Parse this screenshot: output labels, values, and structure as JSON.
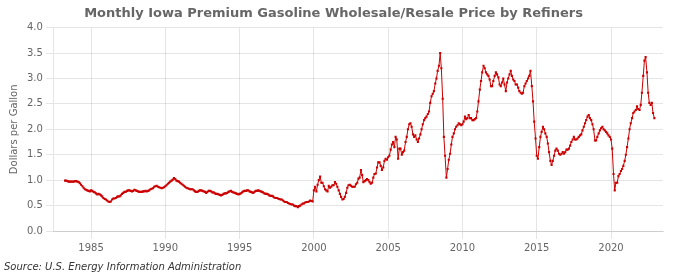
{
  "chart_data": {
    "type": "line",
    "title": "Monthly Iowa Premium Gasoline Wholesale/Resale Price by Refiners",
    "ylabel": "Dollars per Gallon",
    "annotation": "Source: U.S. Energy Information Administration",
    "color": "#cc0000",
    "marker": "square",
    "line_style": "solid",
    "grid": true,
    "xlim": [
      1982.5,
      2023.5
    ],
    "xticks": [
      1985,
      1990,
      1995,
      2000,
      2005,
      2010,
      2015,
      2020
    ],
    "ylim": [
      0.0,
      4.0
    ],
    "yticks": [
      {
        "value": 0.0,
        "label": "0.0"
      },
      0.5,
      {
        "value": 1.0,
        "label": "1.0"
      },
      1.5,
      {
        "value": 2.0,
        "label": "2.0"
      },
      2.5,
      {
        "value": 3.0,
        "label": "3.0"
      },
      3.5,
      {
        "value": 4.0,
        "label": "4.0"
      }
    ],
    "x": [
      1983.25,
      1983.33,
      1983.42,
      1983.5,
      1983.58,
      1983.67,
      1983.75,
      1983.83,
      1983.92,
      1984.0,
      1984.08,
      1984.17,
      1984.25,
      1984.33,
      1984.42,
      1984.5,
      1984.58,
      1984.67,
      1984.75,
      1984.83,
      1984.92,
      1985.0,
      1985.08,
      1985.17,
      1985.25,
      1985.33,
      1985.42,
      1985.5,
      1985.58,
      1985.67,
      1985.75,
      1985.83,
      1985.92,
      1986.0,
      1986.08,
      1986.17,
      1986.25,
      1986.33,
      1986.42,
      1986.5,
      1986.58,
      1986.67,
      1986.75,
      1986.83,
      1986.92,
      1987.0,
      1987.08,
      1987.17,
      1987.25,
      1987.33,
      1987.42,
      1987.5,
      1987.58,
      1987.67,
      1987.75,
      1987.83,
      1987.92,
      1988.0,
      1988.08,
      1988.17,
      1988.25,
      1988.33,
      1988.42,
      1988.5,
      1988.58,
      1988.67,
      1988.75,
      1988.83,
      1988.92,
      1989.0,
      1989.08,
      1989.17,
      1989.25,
      1989.33,
      1989.42,
      1989.5,
      1989.58,
      1989.67,
      1989.75,
      1989.83,
      1989.92,
      1990.0,
      1990.08,
      1990.17,
      1990.25,
      1990.33,
      1990.42,
      1990.5,
      1990.58,
      1990.67,
      1990.75,
      1990.83,
      1990.92,
      1991.0,
      1991.08,
      1991.17,
      1991.25,
      1991.33,
      1991.42,
      1991.5,
      1991.58,
      1991.67,
      1991.75,
      1991.83,
      1991.92,
      1992.0,
      1992.08,
      1992.17,
      1992.25,
      1992.33,
      1992.42,
      1992.5,
      1992.58,
      1992.67,
      1992.75,
      1992.83,
      1992.92,
      1993.0,
      1993.08,
      1993.17,
      1993.25,
      1993.33,
      1993.42,
      1993.5,
      1993.58,
      1993.67,
      1993.75,
      1993.83,
      1993.92,
      1994.0,
      1994.08,
      1994.17,
      1994.25,
      1994.33,
      1994.42,
      1994.5,
      1994.58,
      1994.67,
      1994.75,
      1994.83,
      1994.92,
      1995.0,
      1995.08,
      1995.17,
      1995.25,
      1995.33,
      1995.42,
      1995.5,
      1995.58,
      1995.67,
      1995.75,
      1995.83,
      1995.92,
      1996.0,
      1996.08,
      1996.17,
      1996.25,
      1996.33,
      1996.42,
      1996.5,
      1996.58,
      1996.67,
      1996.75,
      1996.83,
      1996.92,
      1997.0,
      1997.08,
      1997.17,
      1997.25,
      1997.33,
      1997.42,
      1997.5,
      1997.58,
      1997.67,
      1997.75,
      1997.83,
      1997.92,
      1998.0,
      1998.08,
      1998.17,
      1998.25,
      1998.33,
      1998.42,
      1998.5,
      1998.58,
      1998.67,
      1998.75,
      1998.83,
      1998.92,
      1999.0,
      1999.08,
      1999.17,
      1999.25,
      1999.33,
      1999.42,
      1999.5,
      1999.58,
      1999.67,
      1999.75,
      1999.83,
      1999.92,
      2000.0,
      2000.08,
      2000.17,
      2000.25,
      2000.33,
      2000.42,
      2000.5,
      2000.58,
      2000.67,
      2000.75,
      2000.83,
      2000.92,
      2001.0,
      2001.08,
      2001.17,
      2001.25,
      2001.33,
      2001.42,
      2001.5,
      2001.58,
      2001.67,
      2001.75,
      2001.83,
      2001.92,
      2002.0,
      2002.08,
      2002.17,
      2002.25,
      2002.33,
      2002.42,
      2002.5,
      2002.58,
      2002.67,
      2002.75,
      2002.83,
      2002.92,
      2003.0,
      2003.08,
      2003.17,
      2003.25,
      2003.33,
      2003.42,
      2003.5,
      2003.58,
      2003.67,
      2003.75,
      2003.83,
      2003.92,
      2004.0,
      2004.08,
      2004.17,
      2004.25,
      2004.33,
      2004.42,
      2004.5,
      2004.58,
      2004.67,
      2004.75,
      2004.83,
      2004.92,
      2005.0,
      2005.08,
      2005.17,
      2005.25,
      2005.33,
      2005.42,
      2005.5,
      2005.58,
      2005.67,
      2005.75,
      2005.83,
      2005.92,
      2006.0,
      2006.08,
      2006.17,
      2006.25,
      2006.33,
      2006.42,
      2006.5,
      2006.58,
      2006.67,
      2006.75,
      2006.83,
      2006.92,
      2007.0,
      2007.08,
      2007.17,
      2007.25,
      2007.33,
      2007.42,
      2007.5,
      2007.58,
      2007.67,
      2007.75,
      2007.83,
      2007.92,
      2008.0,
      2008.08,
      2008.17,
      2008.25,
      2008.33,
      2008.42,
      2008.5,
      2008.58,
      2008.67,
      2008.75,
      2008.83,
      2008.92,
      2009.0,
      2009.08,
      2009.17,
      2009.25,
      2009.33,
      2009.42,
      2009.5,
      2009.58,
      2009.67,
      2009.75,
      2009.83,
      2009.92,
      2010.0,
      2010.08,
      2010.17,
      2010.25,
      2010.33,
      2010.42,
      2010.5,
      2010.58,
      2010.67,
      2010.75,
      2010.83,
      2010.92,
      2011.0,
      2011.08,
      2011.17,
      2011.25,
      2011.33,
      2011.42,
      2011.5,
      2011.58,
      2011.67,
      2011.75,
      2011.83,
      2011.92,
      2012.0,
      2012.08,
      2012.17,
      2012.25,
      2012.33,
      2012.42,
      2012.5,
      2012.58,
      2012.67,
      2012.75,
      2012.83,
      2012.92,
      2013.0,
      2013.08,
      2013.17,
      2013.25,
      2013.33,
      2013.42,
      2013.5,
      2013.58,
      2013.67,
      2013.75,
      2013.83,
      2013.92,
      2014.0,
      2014.08,
      2014.17,
      2014.25,
      2014.33,
      2014.42,
      2014.5,
      2014.58,
      2014.67,
      2014.75,
      2014.83,
      2014.92,
      2015.0,
      2015.08,
      2015.17,
      2015.25,
      2015.33,
      2015.42,
      2015.5,
      2015.58,
      2015.67,
      2015.75,
      2015.83,
      2015.92,
      2016.0,
      2016.08,
      2016.17,
      2016.25,
      2016.33,
      2016.42,
      2016.5,
      2016.58,
      2016.67,
      2016.75,
      2016.83,
      2016.92,
      2017.0,
      2017.08,
      2017.17,
      2017.25,
      2017.33,
      2017.42,
      2017.5,
      2017.58,
      2017.67,
      2017.75,
      2017.83,
      2017.92,
      2018.0,
      2018.08,
      2018.17,
      2018.25,
      2018.33,
      2018.42,
      2018.5,
      2018.58,
      2018.67,
      2018.75,
      2018.83,
      2018.92,
      2019.0,
      2019.08,
      2019.17,
      2019.25,
      2019.33,
      2019.42,
      2019.5,
      2019.58,
      2019.67,
      2019.75,
      2019.83,
      2019.92,
      2020.0,
      2020.08,
      2020.17,
      2020.25,
      2020.33,
      2020.42,
      2020.5,
      2020.58,
      2020.67,
      2020.75,
      2020.83,
      2020.92,
      2021.0,
      2021.08,
      2021.17,
      2021.25,
      2021.33,
      2021.42,
      2021.5,
      2021.58,
      2021.67,
      2021.75,
      2021.83,
      2021.92,
      2022.0,
      2022.08,
      2022.17,
      2022.25,
      2022.33,
      2022.42,
      2022.5,
      2022.58,
      2022.67,
      2022.75,
      2022.83,
      2022.92
    ],
    "values": [
      0.99,
      0.99,
      0.98,
      0.97,
      0.97,
      0.97,
      0.97,
      0.97,
      0.98,
      0.98,
      0.97,
      0.96,
      0.94,
      0.91,
      0.88,
      0.85,
      0.82,
      0.81,
      0.8,
      0.79,
      0.78,
      0.8,
      0.79,
      0.77,
      0.76,
      0.74,
      0.72,
      0.73,
      0.72,
      0.7,
      0.68,
      0.65,
      0.63,
      0.62,
      0.6,
      0.58,
      0.57,
      0.58,
      0.62,
      0.64,
      0.64,
      0.65,
      0.67,
      0.68,
      0.68,
      0.7,
      0.73,
      0.75,
      0.77,
      0.77,
      0.79,
      0.8,
      0.8,
      0.79,
      0.78,
      0.79,
      0.81,
      0.8,
      0.79,
      0.78,
      0.77,
      0.77,
      0.77,
      0.78,
      0.78,
      0.79,
      0.78,
      0.79,
      0.8,
      0.82,
      0.83,
      0.84,
      0.87,
      0.88,
      0.89,
      0.87,
      0.86,
      0.85,
      0.84,
      0.85,
      0.86,
      0.88,
      0.9,
      0.93,
      0.95,
      0.97,
      0.99,
      1.01,
      1.04,
      1.02,
      0.99,
      0.98,
      0.97,
      0.95,
      0.93,
      0.91,
      0.89,
      0.87,
      0.85,
      0.84,
      0.83,
      0.82,
      0.82,
      0.82,
      0.8,
      0.78,
      0.77,
      0.77,
      0.79,
      0.8,
      0.8,
      0.79,
      0.78,
      0.77,
      0.75,
      0.77,
      0.79,
      0.79,
      0.78,
      0.76,
      0.76,
      0.74,
      0.73,
      0.73,
      0.72,
      0.71,
      0.7,
      0.71,
      0.73,
      0.74,
      0.74,
      0.75,
      0.77,
      0.78,
      0.79,
      0.77,
      0.76,
      0.75,
      0.74,
      0.73,
      0.72,
      0.73,
      0.74,
      0.76,
      0.78,
      0.79,
      0.79,
      0.8,
      0.8,
      0.78,
      0.77,
      0.76,
      0.75,
      0.77,
      0.79,
      0.79,
      0.8,
      0.79,
      0.78,
      0.77,
      0.76,
      0.74,
      0.73,
      0.73,
      0.72,
      0.7,
      0.69,
      0.69,
      0.68,
      0.66,
      0.65,
      0.65,
      0.64,
      0.63,
      0.62,
      0.62,
      0.6,
      0.58,
      0.57,
      0.57,
      0.55,
      0.54,
      0.53,
      0.52,
      0.52,
      0.5,
      0.49,
      0.49,
      0.47,
      0.49,
      0.5,
      0.52,
      0.54,
      0.54,
      0.56,
      0.57,
      0.57,
      0.58,
      0.6,
      0.59,
      0.58,
      0.8,
      0.87,
      0.78,
      0.91,
      1.0,
      1.07,
      0.95,
      0.95,
      0.88,
      0.82,
      0.8,
      0.78,
      0.89,
      0.85,
      0.87,
      0.9,
      0.9,
      0.96,
      0.93,
      0.87,
      0.8,
      0.73,
      0.67,
      0.62,
      0.63,
      0.67,
      0.75,
      0.85,
      0.9,
      0.91,
      0.89,
      0.87,
      0.87,
      0.87,
      0.92,
      0.95,
      1.03,
      1.05,
      1.2,
      1.1,
      0.96,
      0.98,
      1.0,
      1.02,
      1.0,
      0.96,
      0.93,
      0.95,
      1.05,
      1.12,
      1.13,
      1.25,
      1.35,
      1.35,
      1.28,
      1.2,
      1.25,
      1.38,
      1.42,
      1.4,
      1.45,
      1.48,
      1.6,
      1.7,
      1.75,
      1.65,
      1.85,
      1.8,
      1.42,
      1.62,
      1.62,
      1.5,
      1.55,
      1.58,
      1.75,
      1.85,
      2.0,
      2.1,
      2.12,
      2.05,
      1.9,
      1.85,
      1.88,
      1.8,
      1.75,
      1.82,
      1.9,
      2.0,
      2.1,
      2.18,
      2.22,
      2.25,
      2.3,
      2.35,
      2.52,
      2.65,
      2.7,
      2.75,
      2.9,
      3.0,
      3.15,
      3.25,
      3.5,
      3.2,
      2.6,
      1.85,
      1.48,
      1.05,
      1.22,
      1.4,
      1.52,
      1.7,
      1.85,
      1.92,
      2.0,
      2.05,
      2.08,
      2.12,
      2.1,
      2.08,
      2.1,
      2.15,
      2.25,
      2.2,
      2.22,
      2.28,
      2.22,
      2.22,
      2.18,
      2.18,
      2.2,
      2.22,
      2.35,
      2.55,
      2.78,
      2.95,
      3.12,
      3.25,
      3.2,
      3.12,
      3.08,
      3.05,
      2.98,
      2.85,
      2.85,
      2.95,
      3.05,
      3.12,
      3.08,
      3.02,
      2.88,
      2.85,
      2.92,
      3.0,
      2.88,
      2.75,
      2.92,
      3.0,
      3.08,
      3.15,
      3.05,
      2.98,
      2.95,
      2.88,
      2.88,
      2.82,
      2.75,
      2.72,
      2.7,
      2.72,
      2.85,
      2.9,
      2.95,
      3.0,
      3.05,
      3.15,
      2.85,
      2.55,
      2.15,
      1.82,
      1.48,
      1.42,
      1.65,
      1.85,
      1.95,
      2.05,
      2.0,
      1.92,
      1.85,
      1.72,
      1.55,
      1.38,
      1.3,
      1.38,
      1.48,
      1.58,
      1.62,
      1.58,
      1.52,
      1.5,
      1.52,
      1.55,
      1.52,
      1.55,
      1.6,
      1.6,
      1.62,
      1.68,
      1.75,
      1.8,
      1.85,
      1.8,
      1.8,
      1.82,
      1.85,
      1.88,
      1.9,
      1.98,
      2.05,
      2.12,
      2.18,
      2.25,
      2.28,
      2.22,
      2.18,
      2.1,
      2.0,
      1.78,
      1.78,
      1.85,
      1.92,
      1.98,
      2.02,
      2.05,
      2.0,
      1.98,
      1.95,
      1.92,
      1.88,
      1.85,
      1.8,
      1.62,
      1.12,
      0.8,
      0.95,
      0.95,
      1.08,
      1.12,
      1.18,
      1.22,
      1.28,
      1.38,
      1.5,
      1.65,
      1.82,
      2.0,
      2.12,
      2.22,
      2.32,
      2.35,
      2.38,
      2.45,
      2.4,
      2.38,
      2.48,
      2.72,
      3.05,
      3.35,
      3.42,
      3.12,
      2.72,
      2.52,
      2.48,
      2.52,
      2.32,
      2.22
    ]
  }
}
